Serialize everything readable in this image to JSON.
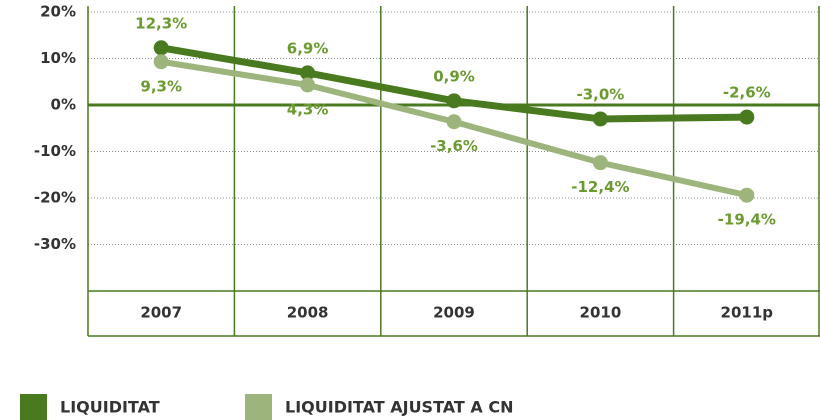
{
  "chart_data": {
    "type": "line",
    "categories": [
      "2007",
      "2008",
      "2009",
      "2010",
      "2011p"
    ],
    "series": [
      {
        "name": "LIQUIDITAT",
        "color": "#4a7a1f",
        "values": [
          12.3,
          6.9,
          0.9,
          -3.0,
          -2.6
        ],
        "value_labels": [
          "12,3%",
          "6,9%",
          "0,9%",
          "-3,0%",
          "-2,6%"
        ]
      },
      {
        "name": "LIQUIDITAT AJUSTAT A CN",
        "color": "#9db57c",
        "values": [
          9.3,
          4.3,
          -3.6,
          -12.4,
          -19.4
        ],
        "value_labels": [
          "9,3%",
          "4,3%",
          "-3,6%",
          "-12,4%",
          "-19,4%"
        ]
      }
    ],
    "ylim": [
      -40,
      20
    ],
    "yticks": [
      {
        "value": 20,
        "label": "20%"
      },
      {
        "value": 10,
        "label": "10%"
      },
      {
        "value": 0,
        "label": "0%"
      },
      {
        "value": -10,
        "label": "-10%"
      },
      {
        "value": -20,
        "label": "-20%"
      },
      {
        "value": -30,
        "label": "-30%"
      }
    ],
    "grid": true
  }
}
